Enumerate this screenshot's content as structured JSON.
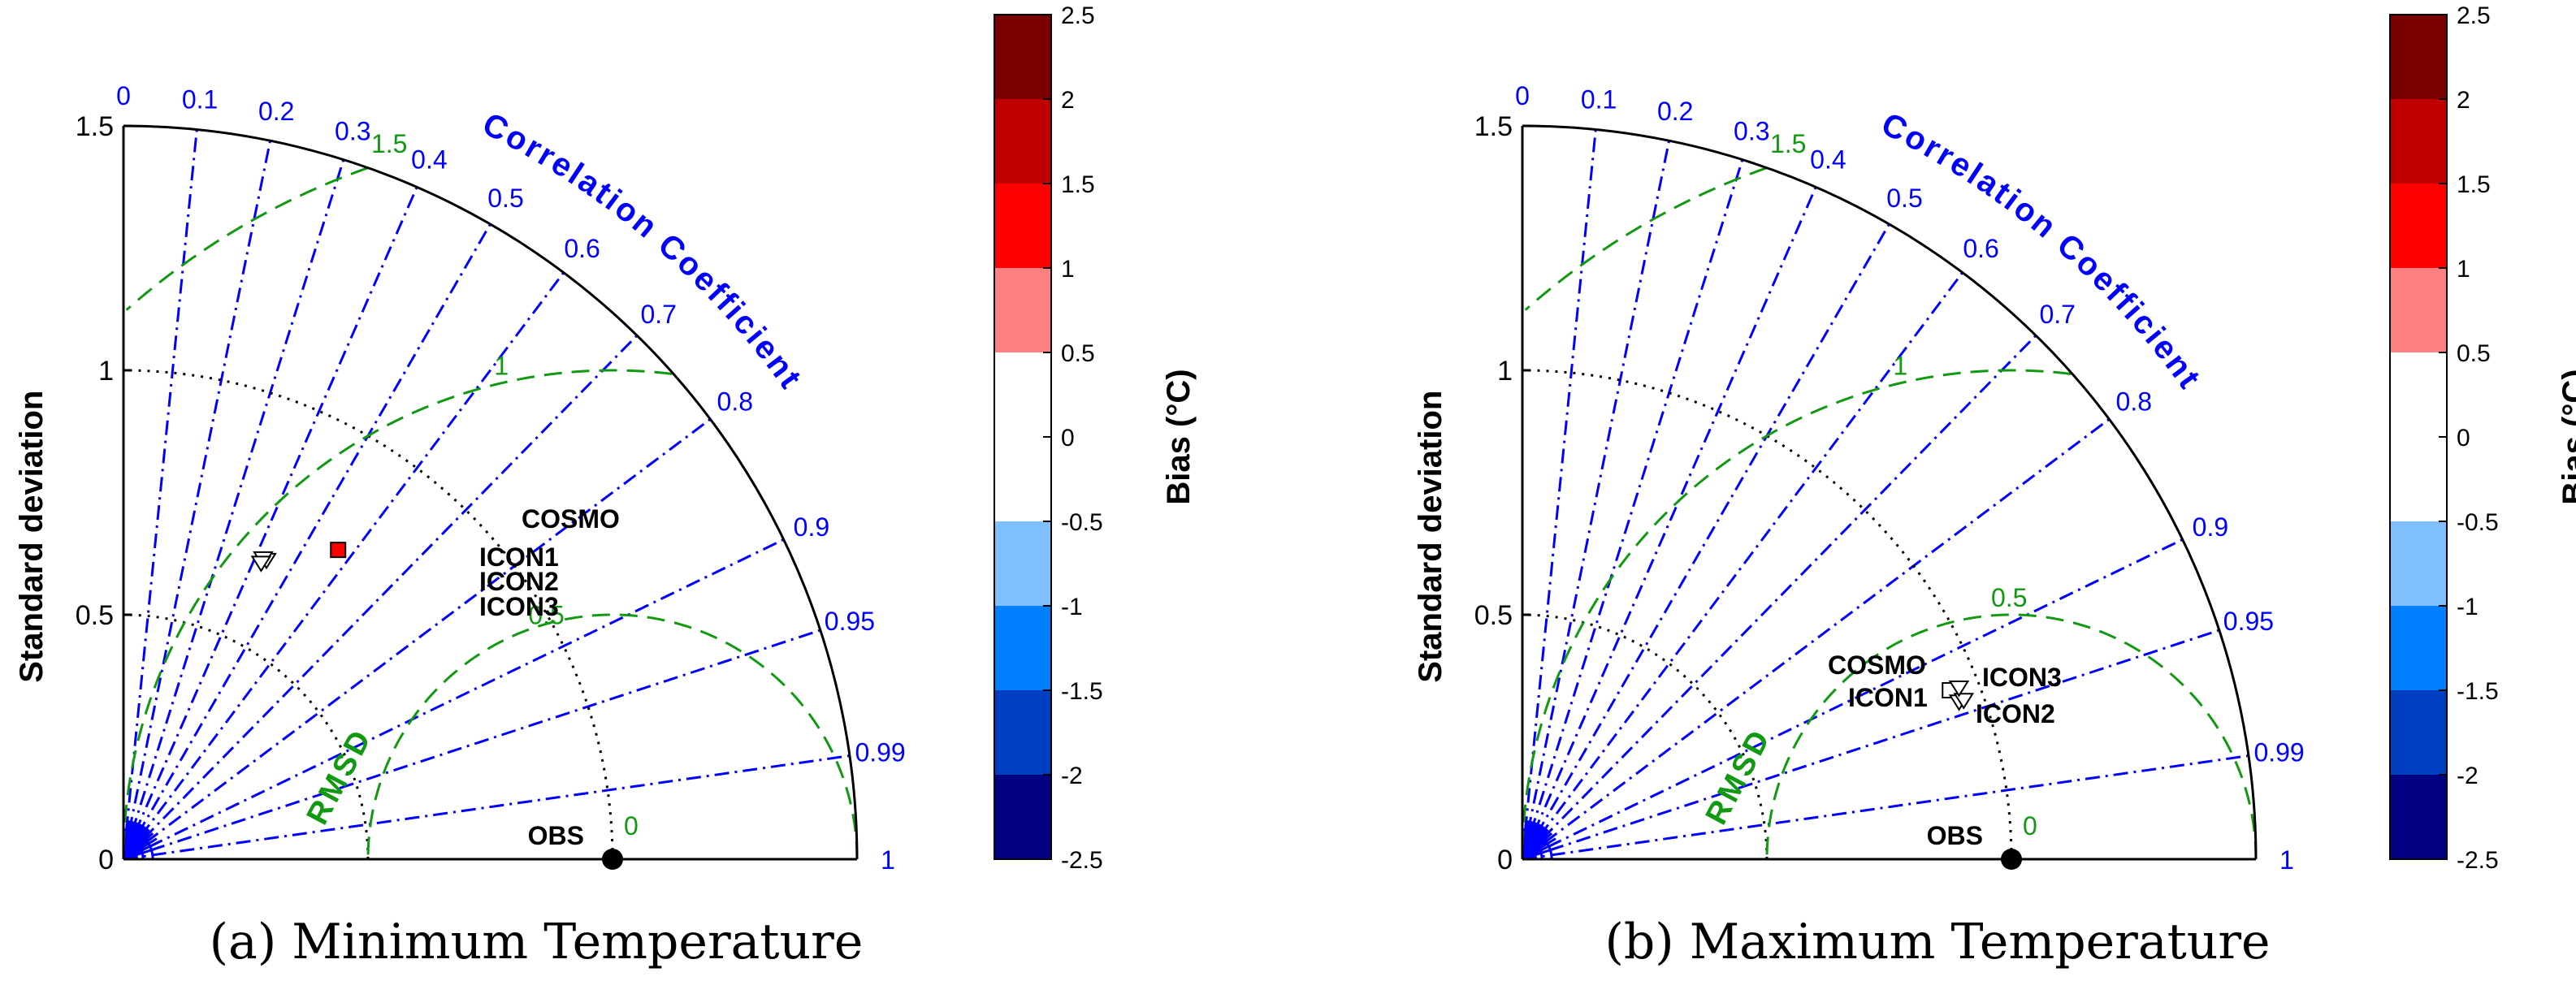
{
  "chart_data": [
    {
      "type": "taylor",
      "caption": "(a) Minimum Temperature",
      "ylabel": "Standard deviation",
      "std_ticks": [
        "0",
        "0.5",
        "1",
        "1.5"
      ],
      "std_tick_values": [
        0,
        0.5,
        1,
        1.5
      ],
      "std_max": 1.5,
      "corr_title": "Correlation Coefficient",
      "corr_ticks": [
        "0",
        "0.1",
        "0.2",
        "0.3",
        "0.4",
        "0.5",
        "0.6",
        "0.7",
        "0.8",
        "0.9",
        "0.95",
        "0.99",
        "1"
      ],
      "corr_tick_values": [
        0,
        0.1,
        0.2,
        0.3,
        0.4,
        0.5,
        0.6,
        0.7,
        0.8,
        0.9,
        0.95,
        0.99,
        1
      ],
      "rmsd_title": "RMSD",
      "rmsd_labels": [
        "0",
        "0.5",
        "1",
        "1.5"
      ],
      "rmsd_values": [
        0.5,
        1,
        1.5
      ],
      "reference": {
        "label": "OBS",
        "std": 1.0
      },
      "points": [
        {
          "label": "COSMO",
          "std": 0.77,
          "corr": 0.57,
          "bias_color": "#ff0000"
        },
        {
          "label": "ICON1",
          "std": 0.68,
          "corr": 0.43,
          "bias_color": "#ffffff"
        },
        {
          "label": "ICON2",
          "std": 0.68,
          "corr": 0.42,
          "bias_color": "#ffffff"
        },
        {
          "label": "ICON3",
          "std": 0.67,
          "corr": 0.42,
          "bias_color": "#ffffff"
        }
      ],
      "colorbar": {
        "title": "Bias (°C)",
        "ticks": [
          "2.5",
          "2",
          "1.5",
          "1",
          "0.5",
          "0",
          "-0.5",
          "-1",
          "-1.5",
          "-2",
          "-2.5"
        ],
        "colors": [
          "#7a0000",
          "#c00000",
          "#ff0000",
          "#ff8080",
          "#ffffff",
          "#ffffff",
          "#80c0ff",
          "#0080ff",
          "#0040c0",
          "#000080"
        ]
      }
    },
    {
      "type": "taylor",
      "caption": "(b) Maximum Temperature",
      "ylabel": "Standard deviation",
      "std_ticks": [
        "0",
        "0.5",
        "1",
        "1.5"
      ],
      "std_tick_values": [
        0,
        0.5,
        1,
        1.5
      ],
      "std_max": 1.5,
      "corr_title": "Correlation Coefficient",
      "corr_ticks": [
        "0",
        "0.1",
        "0.2",
        "0.3",
        "0.4",
        "0.5",
        "0.6",
        "0.7",
        "0.8",
        "0.9",
        "0.95",
        "0.99",
        "1"
      ],
      "corr_tick_values": [
        0,
        0.1,
        0.2,
        0.3,
        0.4,
        0.5,
        0.6,
        0.7,
        0.8,
        0.9,
        0.95,
        0.99,
        1
      ],
      "rmsd_title": "RMSD",
      "rmsd_labels": [
        "0",
        "0.5",
        "1",
        "1.5"
      ],
      "rmsd_values": [
        0.5,
        1,
        1.5
      ],
      "reference": {
        "label": "OBS",
        "std": 1.0
      },
      "points": [
        {
          "label": "COSMO",
          "std": 0.94,
          "corr": 0.93,
          "bias_color": "#ffffff"
        },
        {
          "label": "ICON1",
          "std": 0.95,
          "corr": 0.94,
          "bias_color": "#ffffff"
        },
        {
          "label": "ICON2",
          "std": 0.96,
          "corr": 0.94,
          "bias_color": "#ffffff"
        },
        {
          "label": "ICON3",
          "std": 0.96,
          "corr": 0.93,
          "bias_color": "#ffffff"
        }
      ],
      "colorbar": {
        "title": "Bias (°C)",
        "ticks": [
          "2.5",
          "2",
          "1.5",
          "1",
          "0.5",
          "0",
          "-0.5",
          "-1",
          "-1.5",
          "-2",
          "-2.5"
        ],
        "colors": [
          "#7a0000",
          "#c00000",
          "#ff0000",
          "#ff8080",
          "#ffffff",
          "#ffffff",
          "#80c0ff",
          "#0080ff",
          "#0040c0",
          "#000080"
        ]
      }
    }
  ]
}
